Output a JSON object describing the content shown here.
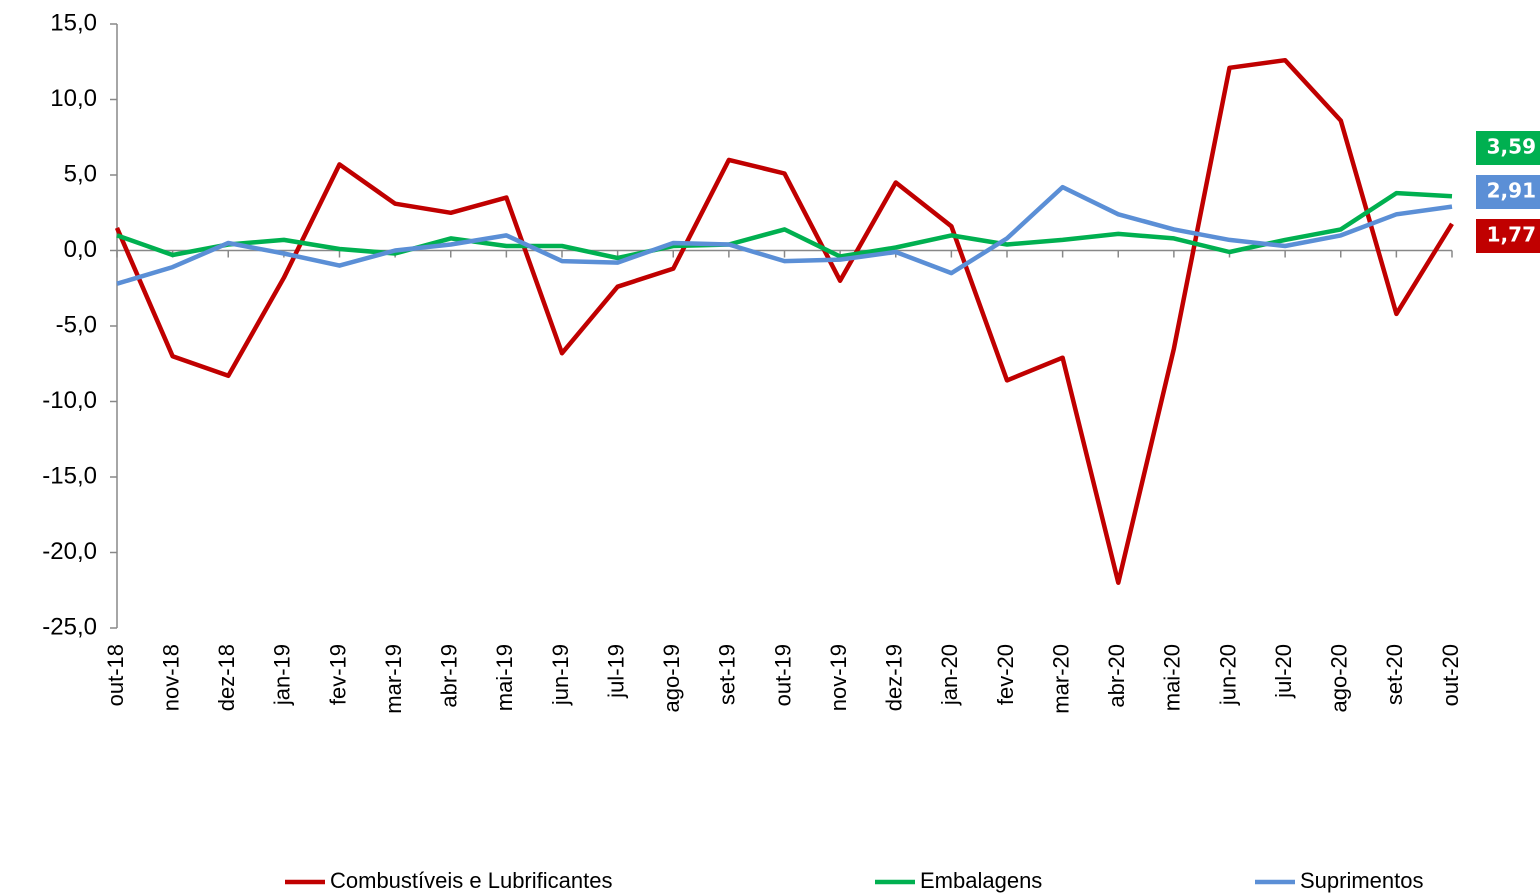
{
  "chart_data": {
    "type": "line",
    "categories": [
      "out-18",
      "nov-18",
      "dez-18",
      "jan-19",
      "fev-19",
      "mar-19",
      "abr-19",
      "mai-19",
      "jun-19",
      "jul-19",
      "ago-19",
      "set-19",
      "out-19",
      "nov-19",
      "dez-19",
      "jan-20",
      "fev-20",
      "mar-20",
      "abr-20",
      "mai-20",
      "jun-20",
      "jul-20",
      "ago-20",
      "set-20",
      "out-20"
    ],
    "series": [
      {
        "name": "Combustíveis e Lubrificantes",
        "color": "#c00000",
        "values": [
          1.5,
          -7.0,
          -8.3,
          -1.8,
          5.7,
          3.1,
          2.5,
          3.5,
          -6.8,
          -2.4,
          -1.2,
          6.0,
          5.1,
          -2.0,
          4.5,
          1.6,
          -8.6,
          -7.1,
          -22.0,
          -6.5,
          12.1,
          12.6,
          8.6,
          -4.2,
          1.77
        ],
        "value_labels": [
          null,
          null,
          null,
          null,
          null,
          null,
          null,
          null,
          null,
          null,
          null,
          null,
          null,
          null,
          null,
          null,
          null,
          null,
          null,
          null,
          null,
          null,
          null,
          null,
          "1,77"
        ]
      },
      {
        "name": "Embalagens",
        "color": "#00b050",
        "values": [
          1.0,
          -0.3,
          0.4,
          0.7,
          0.1,
          -0.2,
          0.8,
          0.3,
          0.3,
          -0.5,
          0.3,
          0.4,
          1.4,
          -0.4,
          0.2,
          1.0,
          0.4,
          0.7,
          1.1,
          0.8,
          -0.1,
          0.7,
          1.4,
          3.8,
          3.59
        ],
        "value_labels": [
          null,
          null,
          null,
          null,
          null,
          null,
          null,
          null,
          null,
          null,
          null,
          null,
          null,
          null,
          null,
          null,
          null,
          null,
          null,
          null,
          null,
          null,
          null,
          null,
          "3,59"
        ]
      },
      {
        "name": "Suprimentos",
        "color": "#5b8fd6",
        "values": [
          -2.2,
          -1.1,
          0.5,
          -0.2,
          -1.0,
          0.0,
          0.4,
          1.0,
          -0.7,
          -0.8,
          0.5,
          0.4,
          -0.7,
          -0.6,
          -0.1,
          -1.5,
          0.8,
          4.2,
          2.4,
          1.4,
          0.7,
          0.3,
          1.0,
          2.4,
          2.91
        ],
        "value_labels": [
          null,
          null,
          null,
          null,
          null,
          null,
          null,
          null,
          null,
          null,
          null,
          null,
          null,
          null,
          null,
          null,
          null,
          null,
          null,
          null,
          null,
          null,
          null,
          null,
          "2,91"
        ]
      }
    ],
    "ylim": [
      -25,
      15
    ],
    "yticks": [
      {
        "value": -25,
        "label": "-25,0"
      },
      {
        "value": -20,
        "label": "-20,0"
      },
      {
        "value": -15,
        "label": "-15,0"
      },
      {
        "value": -10,
        "label": "-10,0"
      },
      {
        "value": -5,
        "label": "-5,0"
      },
      {
        "value": 0,
        "label": "0,0"
      },
      {
        "value": 5,
        "label": "5,0"
      },
      {
        "value": 10,
        "label": "10,0"
      },
      {
        "value": 15,
        "label": "15,0"
      }
    ],
    "grid": false,
    "legend": "bottom"
  }
}
